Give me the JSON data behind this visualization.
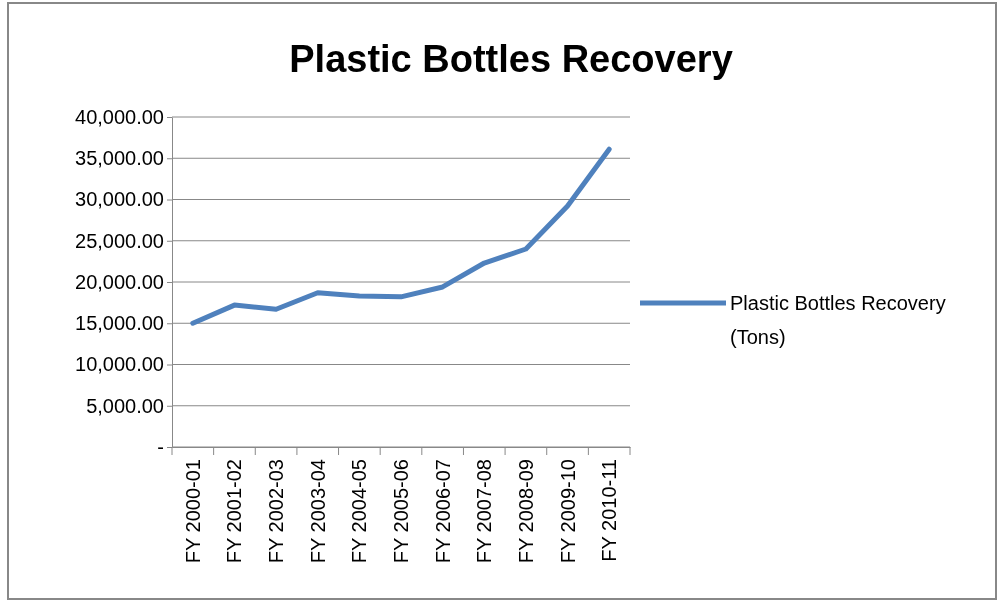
{
  "chart_data": {
    "type": "line",
    "title": "Plastic Bottles Recovery",
    "categories": [
      "FY 2000-01",
      "FY 2001-02",
      "FY 2002-03",
      "FY 2003-04",
      "FY 2004-05",
      "FY 2005-06",
      "FY 2006-07",
      "FY 2007-08",
      "FY 2008-09",
      "FY 2009-10",
      "FY 2010-11"
    ],
    "series": [
      {
        "name": "Plastic Bottles Recovery (Tons)",
        "color": "#4f81bd",
        "values": [
          15000,
          17200,
          16700,
          18700,
          18300,
          18200,
          19400,
          22300,
          24000,
          29200,
          36100
        ]
      }
    ],
    "ylim": [
      0,
      40000
    ],
    "yticks": [
      {
        "value": 0,
        "label": "-"
      },
      {
        "value": 5000,
        "label": "5,000.00"
      },
      {
        "value": 10000,
        "label": "10,000.00"
      },
      {
        "value": 15000,
        "label": "15,000.00"
      },
      {
        "value": 20000,
        "label": "20,000.00"
      },
      {
        "value": 25000,
        "label": "25,000.00"
      },
      {
        "value": 30000,
        "label": "30,000.00"
      },
      {
        "value": 35000,
        "label": "35,000.00"
      },
      {
        "value": 40000,
        "label": "40,000.00"
      }
    ],
    "grid": "y",
    "legend": "right",
    "marker": "none",
    "line_style": "solid"
  }
}
